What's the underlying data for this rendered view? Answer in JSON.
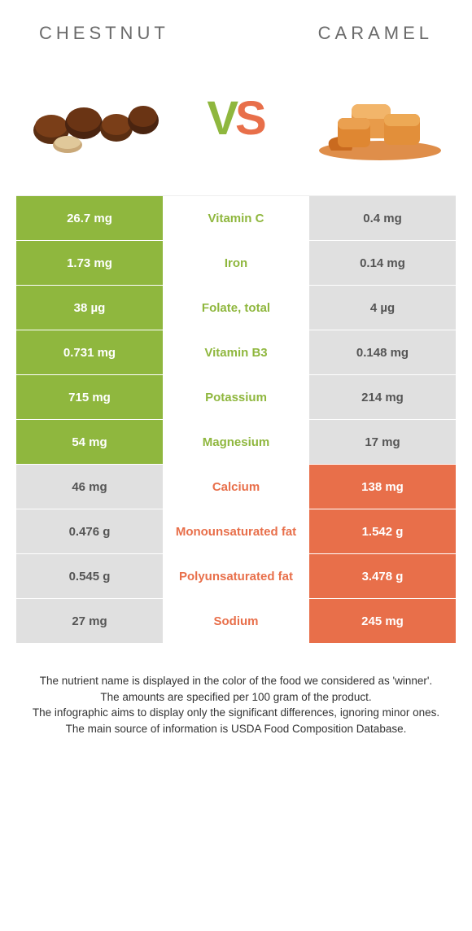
{
  "header": {
    "left_title": "CHESTNUT",
    "right_title": "CARAMEL"
  },
  "vs": {
    "v_letter": "V",
    "s_letter": "S",
    "v_color": "#8fb73e",
    "s_color": "#e86f4a"
  },
  "colors": {
    "left_fill": "#8fb73e",
    "right_fill": "#e86f4a",
    "neutral_fill": "#e0e0e0",
    "left_text_on_neutral": "#555555",
    "right_text_on_neutral": "#555555",
    "mid_left_text": "#8fb73e",
    "mid_right_text": "#e86f4a"
  },
  "rows": [
    {
      "label": "Vitamin C",
      "left": "26.7 mg",
      "right": "0.4 mg",
      "winner": "left"
    },
    {
      "label": "Iron",
      "left": "1.73 mg",
      "right": "0.14 mg",
      "winner": "left"
    },
    {
      "label": "Folate, total",
      "left": "38 µg",
      "right": "4 µg",
      "winner": "left"
    },
    {
      "label": "Vitamin B3",
      "left": "0.731 mg",
      "right": "0.148 mg",
      "winner": "left"
    },
    {
      "label": "Potassium",
      "left": "715 mg",
      "right": "214 mg",
      "winner": "left"
    },
    {
      "label": "Magnesium",
      "left": "54 mg",
      "right": "17 mg",
      "winner": "left"
    },
    {
      "label": "Calcium",
      "left": "46 mg",
      "right": "138 mg",
      "winner": "right"
    },
    {
      "label": "Monounsaturated fat",
      "left": "0.476 g",
      "right": "1.542 g",
      "winner": "right"
    },
    {
      "label": "Polyunsaturated fat",
      "left": "0.545 g",
      "right": "3.478 g",
      "winner": "right"
    },
    {
      "label": "Sodium",
      "left": "27 mg",
      "right": "245 mg",
      "winner": "right"
    }
  ],
  "footnote": {
    "line1": "The nutrient name is displayed in the color of the food we considered as 'winner'.",
    "line2": "The amounts are specified per 100 gram of the product.",
    "line3": "The infographic aims to display only the significant differences, ignoring minor ones.",
    "line4": "The main source of information is USDA Food Composition Database."
  },
  "images": {
    "chestnut_alt": "chestnut-image",
    "caramel_alt": "caramel-image"
  }
}
